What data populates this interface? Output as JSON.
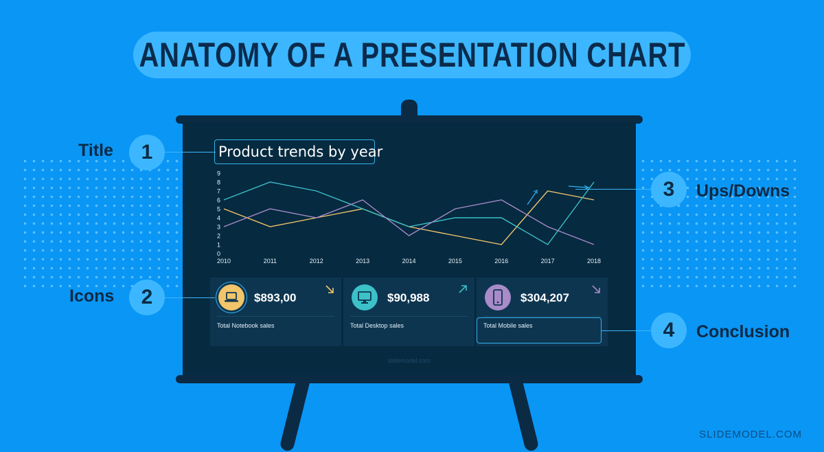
{
  "page_title": "ANATOMY OF A PRESENTATION CHART",
  "brand": "SLIDEMODEL.COM",
  "callouts": [
    {
      "number": "1",
      "label": "Title"
    },
    {
      "number": "2",
      "label": "Icons"
    },
    {
      "number": "3",
      "label": "Ups/Downs"
    },
    {
      "number": "4",
      "label": "Conclusion"
    }
  ],
  "screen": {
    "watermark": "slidemodel.com"
  },
  "cards": [
    {
      "value": "$893,00",
      "label": "Total Notebook sales",
      "icon": "laptop-icon",
      "trend": "down",
      "color": "#f2c56b"
    },
    {
      "value": "$90,988",
      "label": "Total Desktop sales",
      "icon": "monitor-icon",
      "trend": "up",
      "color": "#3cc1c9"
    },
    {
      "value": "$304,207",
      "label": "Total Mobile sales",
      "icon": "mobile-icon",
      "trend": "down",
      "color": "#a88bc8"
    }
  ],
  "chart_data": {
    "type": "line",
    "title": "Product trends by year",
    "x": [
      "2010",
      "2011",
      "2012",
      "2013",
      "2014",
      "2015",
      "2016",
      "2017",
      "2018"
    ],
    "ylim": [
      0,
      9
    ],
    "yticks": [
      0,
      1,
      2,
      3,
      4,
      5,
      6,
      7,
      8,
      9
    ],
    "grid": false,
    "series": [
      {
        "color": "#f2c56b",
        "values": [
          5,
          3,
          4,
          5,
          3,
          2,
          1,
          7,
          6
        ]
      },
      {
        "color": "#3cc1c9",
        "values": [
          6,
          8,
          7,
          5,
          3,
          4,
          4,
          1,
          8
        ]
      },
      {
        "color": "#a88bc8",
        "values": [
          3,
          5,
          4,
          6,
          2,
          5,
          6,
          3,
          1
        ]
      }
    ]
  }
}
